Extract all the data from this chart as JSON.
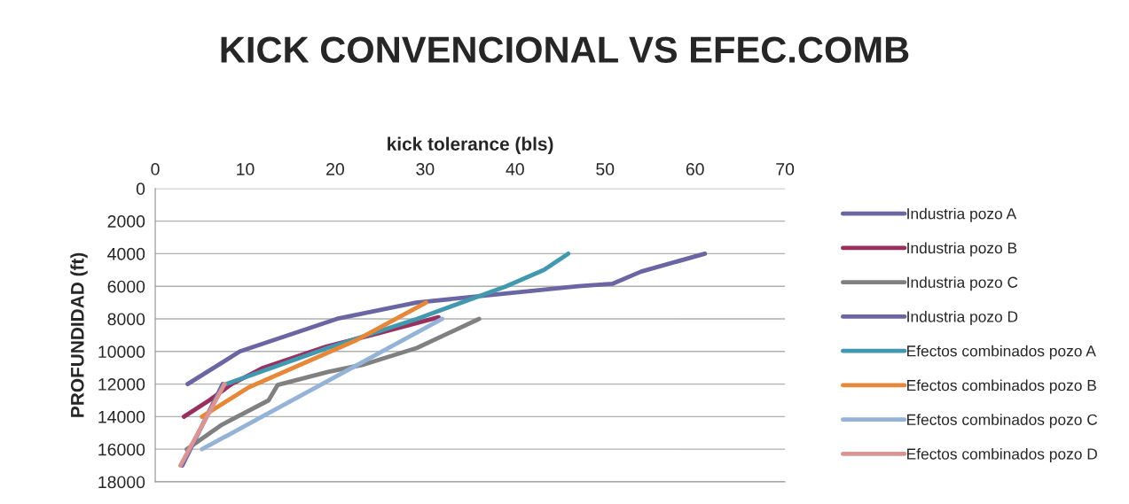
{
  "chart_data": {
    "type": "line",
    "title": "KICK CONVENCIONAL VS EFEC.COMB",
    "xlabel": "kick tolerance (bls)",
    "ylabel": "PROFUNDIDAD (ft)",
    "xlim": [
      0,
      70
    ],
    "xticks": [
      0,
      10,
      20,
      30,
      40,
      50,
      60,
      70
    ],
    "ylim": [
      18000,
      0
    ],
    "yticks": [
      0,
      2000,
      4000,
      6000,
      8000,
      10000,
      12000,
      14000,
      16000,
      18000
    ],
    "grid": "y",
    "legend": "right",
    "line_style": "solid",
    "marker": "none",
    "series": [
      {
        "name": "Industria pozo A",
        "color": "#6a66a3",
        "x": [
          3.6,
          9.4,
          20.2,
          29,
          47,
          50.8,
          54,
          61.1
        ],
        "values": [
          12000,
          10000,
          8000,
          7000,
          6000,
          5850,
          5100,
          4000
        ]
      },
      {
        "name": "Industria pozo B",
        "color": "#98315f",
        "x": [
          3.2,
          6,
          8.5,
          12,
          19,
          24,
          31.5
        ],
        "values": [
          14000,
          13000,
          12000,
          11000,
          9700,
          9000,
          7900
        ]
      },
      {
        "name": "Industria pozo C",
        "color": "#808080",
        "x": [
          3.5,
          7.4,
          12.6,
          13.6,
          19.2,
          23.2,
          29.1,
          36
        ],
        "values": [
          16000,
          14500,
          13000,
          12060,
          11250,
          10800,
          9780,
          8000
        ]
      },
      {
        "name": "Industria pozo D",
        "color": "#6a66a3",
        "x": [
          3,
          7.5
        ],
        "values": [
          17000,
          12000
        ]
      },
      {
        "name": "Efectos combinados pozo A",
        "color": "#4198af",
        "x": [
          7.9,
          19.2,
          29.1,
          39,
          43.2,
          45.9
        ],
        "values": [
          12000,
          9780,
          8000,
          6000,
          5000,
          4000
        ]
      },
      {
        "name": "Efectos combinados pozo B",
        "color": "#e6883a",
        "x": [
          5.2,
          10.4,
          22.2,
          30.1
        ],
        "values": [
          14000,
          12200,
          9350,
          7000
        ]
      },
      {
        "name": "Efectos combinados pozo C",
        "color": "#95b3d7",
        "x": [
          5.2,
          31.9
        ],
        "values": [
          16000,
          8000
        ]
      },
      {
        "name": "Efectos combinados pozo D",
        "color": "#d99594",
        "x": [
          2.8,
          7.7
        ],
        "values": [
          17000,
          12000
        ]
      }
    ]
  }
}
